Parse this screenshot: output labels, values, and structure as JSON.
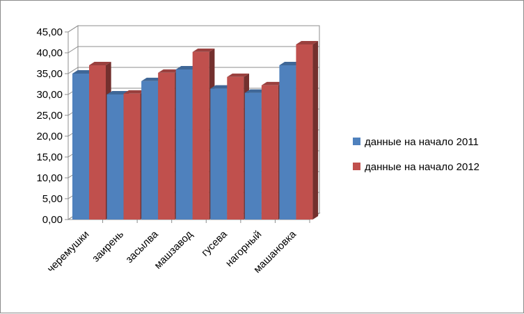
{
  "chart_data": {
    "type": "bar",
    "style": "3d-clustered-column",
    "categories": [
      "черемушки",
      "заирень",
      "засылва",
      "машзавод",
      "гусева",
      "нагорный",
      "машановка"
    ],
    "series": [
      {
        "name": "данные на начало 2011",
        "color": "#4f81bd",
        "values": [
          35.0,
          30.0,
          33.2,
          36.0,
          31.4,
          30.4,
          37.0
        ]
      },
      {
        "name": "данные на начало 2012",
        "color": "#c0504d",
        "values": [
          37.0,
          30.2,
          35.2,
          40.2,
          34.2,
          32.2,
          42.0
        ]
      }
    ],
    "ylim": [
      0,
      45
    ],
    "yticks": [
      "0,00",
      "5,00",
      "10,00",
      "15,00",
      "20,00",
      "25,00",
      "30,00",
      "35,00",
      "40,00",
      "45,00"
    ],
    "grid": true,
    "legend_position": "right",
    "title": "",
    "xlabel": "",
    "ylabel": ""
  }
}
